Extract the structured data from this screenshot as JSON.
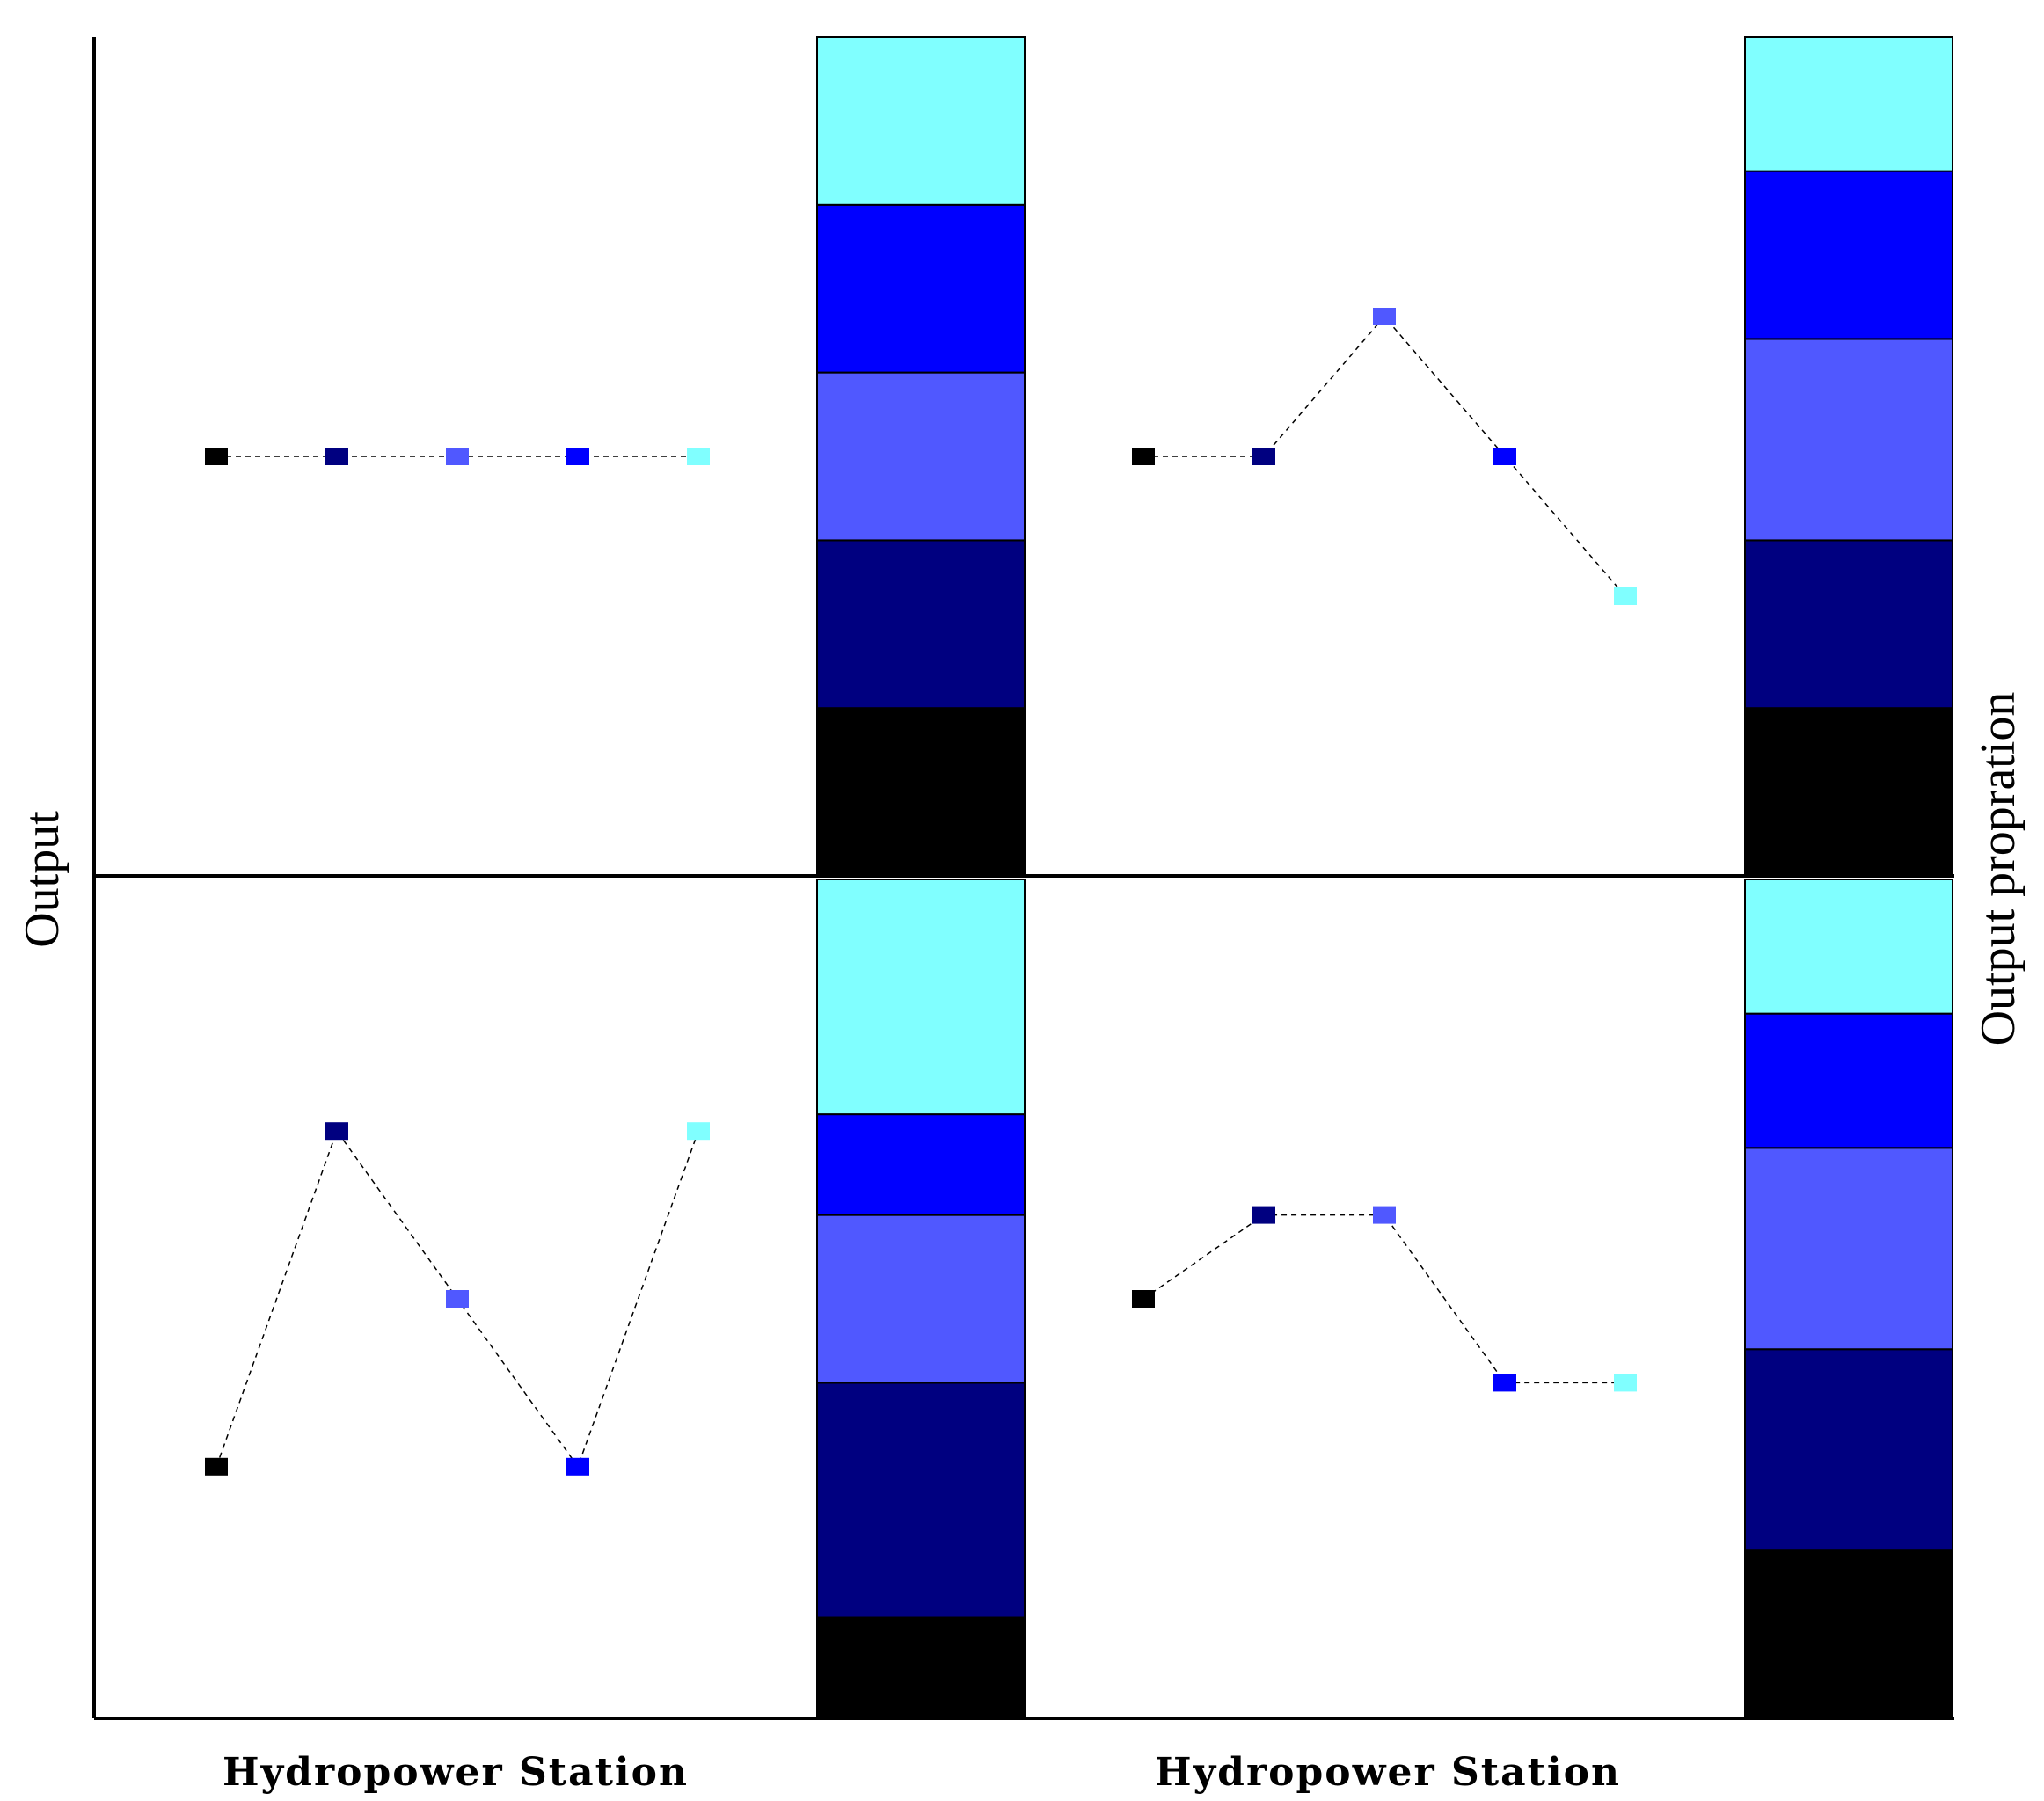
{
  "labels": {
    "x_axis": "Hydropower Station",
    "y_left": "Output",
    "y_right": "Output propration"
  },
  "chart_data": [
    {
      "type": "line",
      "panel": "top-left",
      "categories": [
        "",
        "",
        "",
        "",
        ""
      ],
      "values": [
        3.0,
        3.0,
        3.0,
        3.0,
        3.0
      ],
      "colors": [
        "#000000",
        "#000080",
        "#5058ff",
        "#0000ff",
        "#80ffff"
      ],
      "proportions": [
        0.2,
        0.2,
        0.2,
        0.2,
        0.2
      ],
      "ylim": [
        0,
        6
      ],
      "grid": false
    },
    {
      "type": "line",
      "panel": "top-right",
      "categories": [
        "",
        "",
        "",
        "",
        ""
      ],
      "values": [
        3.0,
        3.0,
        4.0,
        3.0,
        2.0
      ],
      "colors": [
        "#000000",
        "#000080",
        "#5058ff",
        "#0000ff",
        "#80ffff"
      ],
      "proportions": [
        0.2,
        0.2,
        0.24,
        0.2,
        0.16
      ],
      "ylim": [
        0,
        6
      ],
      "grid": false
    },
    {
      "type": "line",
      "panel": "bottom-left",
      "categories": [
        "",
        "",
        "",
        "",
        ""
      ],
      "values": [
        1.8,
        4.2,
        3.0,
        1.8,
        4.2
      ],
      "colors": [
        "#000000",
        "#000080",
        "#5058ff",
        "#0000ff",
        "#80ffff"
      ],
      "proportions": [
        0.12,
        0.28,
        0.2,
        0.12,
        0.28
      ],
      "ylim": [
        0,
        6
      ],
      "grid": false
    },
    {
      "type": "line",
      "panel": "bottom-right",
      "categories": [
        "",
        "",
        "",
        "",
        ""
      ],
      "values": [
        3.0,
        3.6,
        3.6,
        2.4,
        2.4
      ],
      "colors": [
        "#000000",
        "#000080",
        "#5058ff",
        "#0000ff",
        "#80ffff"
      ],
      "proportions": [
        0.2,
        0.24,
        0.24,
        0.16,
        0.16
      ],
      "ylim": [
        0,
        6
      ],
      "grid": false
    }
  ]
}
